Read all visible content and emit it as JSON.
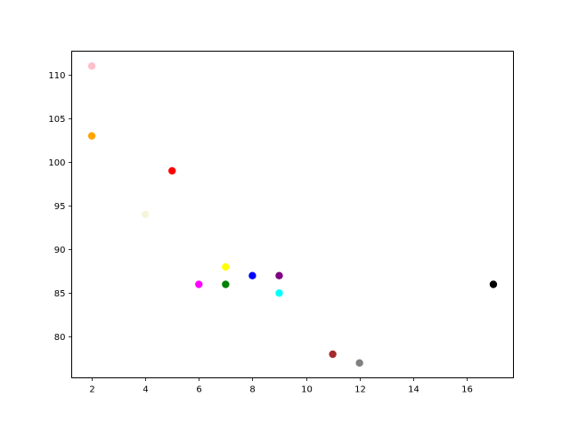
{
  "chart_data": {
    "type": "scatter",
    "title": "",
    "xlabel": "",
    "ylabel": "",
    "xlim": [
      1.25,
      17.75
    ],
    "ylim": [
      75.3,
      112.7
    ],
    "grid": false,
    "xticks": [
      2,
      4,
      6,
      8,
      10,
      12,
      14,
      16
    ],
    "yticks": [
      80,
      85,
      90,
      95,
      100,
      105,
      110
    ],
    "points": [
      {
        "x": 5,
        "y": 99,
        "color": "#ff0000"
      },
      {
        "x": 7,
        "y": 86,
        "color": "#008000"
      },
      {
        "x": 8,
        "y": 87,
        "color": "#0000ff"
      },
      {
        "x": 7,
        "y": 88,
        "color": "#ffff00"
      },
      {
        "x": 2,
        "y": 111,
        "color": "#ffc0cb"
      },
      {
        "x": 17,
        "y": 86,
        "color": "#000000"
      },
      {
        "x": 2,
        "y": 103,
        "color": "#ffa500"
      },
      {
        "x": 9,
        "y": 87,
        "color": "#800080"
      },
      {
        "x": 4,
        "y": 94,
        "color": "#f5f5dc"
      },
      {
        "x": 11,
        "y": 78,
        "color": "#a52a2a"
      },
      {
        "x": 12,
        "y": 77,
        "color": "#808080"
      },
      {
        "x": 9,
        "y": 85,
        "color": "#00ffff"
      },
      {
        "x": 6,
        "y": 86,
        "color": "#ff00ff"
      }
    ]
  }
}
